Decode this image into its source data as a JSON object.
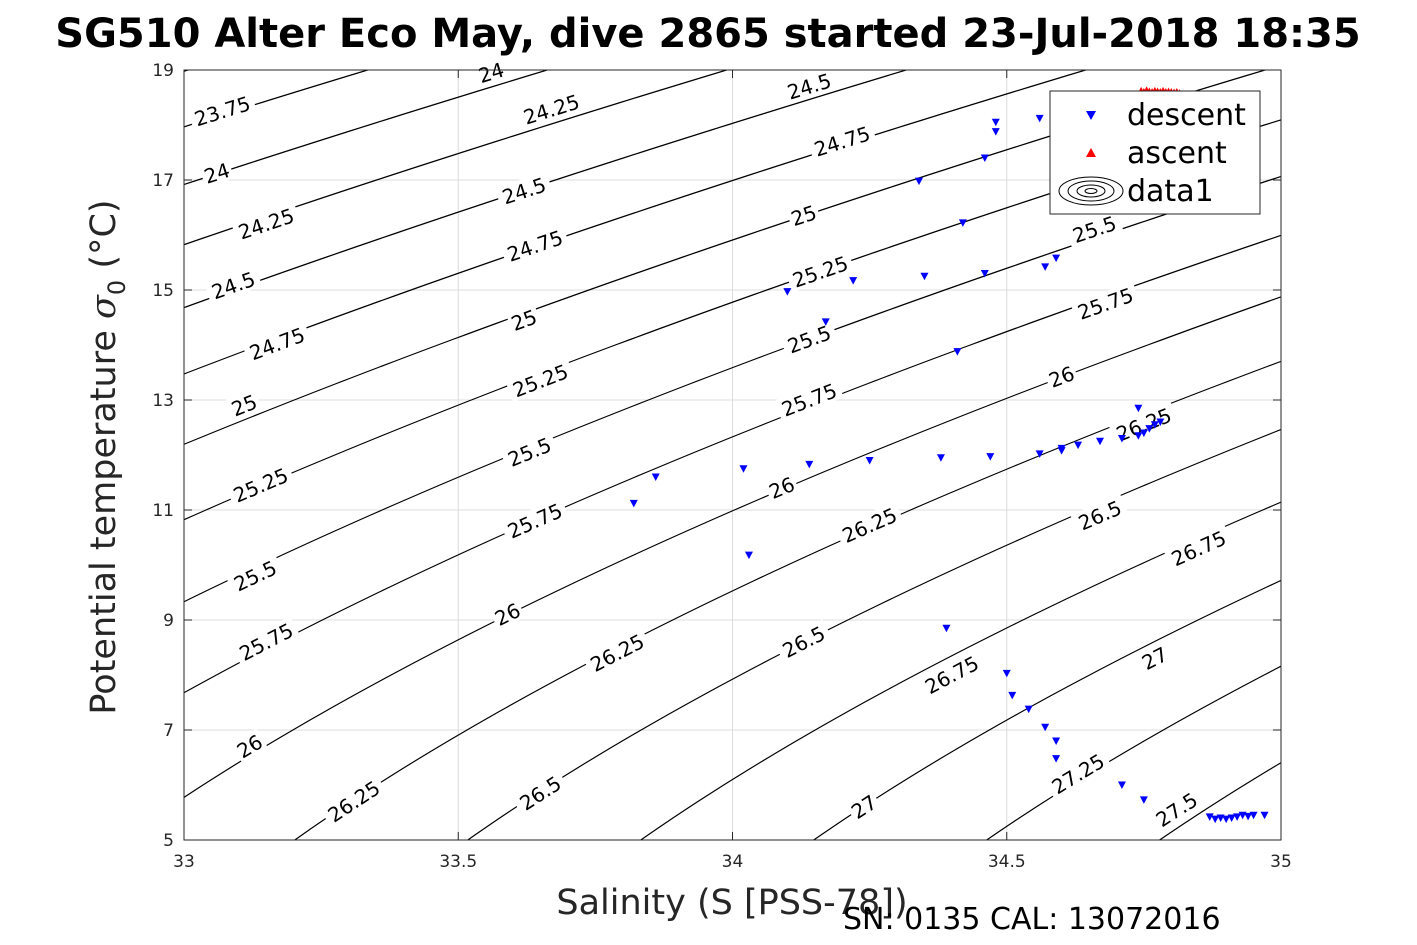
{
  "chart_data": {
    "type": "scatter",
    "title": "SG510 Alter Eco May, dive 2865 started 23-Jul-2018 18:35",
    "xlabel": "Salinity (S [PSS-78])",
    "ylabel_main": "Potential temperature ",
    "ylabel_symbol": "σ",
    "ylabel_sub": "0",
    "ylabel_unit": " (°C)",
    "xlim": [
      33,
      35
    ],
    "ylim": [
      5,
      19
    ],
    "xticks": [
      33,
      33.5,
      34,
      34.5,
      35
    ],
    "xtick_labels": [
      "33",
      "33.5",
      "34",
      "34.5",
      "35"
    ],
    "yticks": [
      5,
      7,
      9,
      11,
      13,
      15,
      17,
      19
    ],
    "ytick_labels": [
      "5",
      "7",
      "9",
      "11",
      "13",
      "15",
      "17",
      "19"
    ],
    "grid": true,
    "legend_placement": "top-right",
    "footer": "SN: 0135  CAL: 13072016",
    "series": [
      {
        "name": "descent",
        "marker": "triangle-down",
        "color": "#0000ff",
        "points": [
          [
            33.82,
            11.12
          ],
          [
            33.86,
            11.6
          ],
          [
            34.02,
            11.75
          ],
          [
            34.03,
            10.18
          ],
          [
            34.1,
            14.97
          ],
          [
            34.14,
            11.83
          ],
          [
            34.17,
            14.42
          ],
          [
            34.22,
            15.17
          ],
          [
            34.25,
            11.9
          ],
          [
            34.34,
            16.98
          ],
          [
            34.35,
            15.25
          ],
          [
            34.38,
            11.95
          ],
          [
            34.39,
            8.85
          ],
          [
            34.41,
            13.88
          ],
          [
            34.42,
            16.22
          ],
          [
            34.46,
            17.4
          ],
          [
            34.46,
            15.3
          ],
          [
            34.47,
            11.97
          ],
          [
            34.48,
            18.05
          ],
          [
            34.48,
            17.88
          ],
          [
            34.5,
            8.03
          ],
          [
            34.51,
            7.63
          ],
          [
            34.54,
            7.38
          ],
          [
            34.56,
            18.12
          ],
          [
            34.56,
            12.02
          ],
          [
            34.57,
            15.42
          ],
          [
            34.57,
            7.05
          ],
          [
            34.59,
            15.58
          ],
          [
            34.59,
            6.8
          ],
          [
            34.59,
            6.48
          ],
          [
            34.6,
            12.08
          ],
          [
            34.6,
            12.12
          ],
          [
            34.63,
            12.18
          ],
          [
            34.67,
            12.25
          ],
          [
            34.71,
            12.3
          ],
          [
            34.71,
            6.0
          ],
          [
            34.74,
            12.85
          ],
          [
            34.74,
            12.35
          ],
          [
            34.75,
            5.73
          ],
          [
            34.75,
            12.4
          ],
          [
            34.76,
            12.48
          ],
          [
            34.77,
            12.55
          ],
          [
            34.78,
            12.6
          ],
          [
            34.87,
            5.42
          ],
          [
            34.88,
            5.38
          ],
          [
            34.89,
            5.4
          ],
          [
            34.9,
            5.38
          ],
          [
            34.91,
            5.4
          ],
          [
            34.92,
            5.42
          ],
          [
            34.93,
            5.45
          ],
          [
            34.94,
            5.43
          ],
          [
            34.95,
            5.45
          ],
          [
            34.97,
            5.45
          ]
        ]
      },
      {
        "name": "ascent",
        "marker": "triangle-up",
        "color": "#ff0000",
        "points": [
          [
            34.745,
            18.62
          ],
          [
            34.75,
            18.6
          ],
          [
            34.755,
            18.63
          ],
          [
            34.76,
            18.61
          ],
          [
            34.765,
            18.6
          ],
          [
            34.77,
            18.62
          ],
          [
            34.775,
            18.61
          ],
          [
            34.78,
            18.6
          ],
          [
            34.785,
            18.62
          ],
          [
            34.79,
            18.6
          ],
          [
            34.795,
            18.61
          ],
          [
            34.8,
            18.6
          ],
          [
            34.805,
            18.59
          ],
          [
            34.81,
            18.6
          ],
          [
            34.815,
            18.58
          ]
        ]
      },
      {
        "name": "data1",
        "marker": "contour",
        "color": "#000000",
        "levels": [
          23.75,
          24,
          24.25,
          24.5,
          24.75,
          25,
          25.25,
          25.5,
          25.75,
          26,
          26.25,
          26.5,
          26.75,
          27,
          27.25,
          27.5
        ]
      }
    ],
    "contour_labels": [
      {
        "text": "23.75",
        "s": 33.07,
        "t": 18.25
      },
      {
        "text": "24",
        "s": 33.56,
        "t": 18.95
      },
      {
        "text": "24",
        "s": 33.06,
        "t": 17.12
      },
      {
        "text": "24.25",
        "s": 33.67,
        "t": 18.28
      },
      {
        "text": "24.25",
        "s": 33.15,
        "t": 16.2
      },
      {
        "text": "24.5",
        "s": 34.14,
        "t": 18.7
      },
      {
        "text": "24.5",
        "s": 33.62,
        "t": 16.8
      },
      {
        "text": "24.5",
        "s": 33.09,
        "t": 15.08
      },
      {
        "text": "24.75",
        "s": 34.2,
        "t": 17.7
      },
      {
        "text": "24.75",
        "s": 33.64,
        "t": 15.8
      },
      {
        "text": "24.75",
        "s": 33.17,
        "t": 14.02
      },
      {
        "text": "25",
        "s": 34.13,
        "t": 16.35
      },
      {
        "text": "25",
        "s": 33.62,
        "t": 14.45
      },
      {
        "text": "25",
        "s": 33.11,
        "t": 12.9
      },
      {
        "text": "25.25",
        "s": 34.16,
        "t": 15.33
      },
      {
        "text": "25.25",
        "s": 33.65,
        "t": 13.35
      },
      {
        "text": "25.25",
        "s": 33.14,
        "t": 11.45
      },
      {
        "text": "25.5",
        "s": 34.66,
        "t": 16.1
      },
      {
        "text": "25.5",
        "s": 34.14,
        "t": 14.1
      },
      {
        "text": "25.5",
        "s": 33.63,
        "t": 12.05
      },
      {
        "text": "25.5",
        "s": 33.13,
        "t": 9.8
      },
      {
        "text": "25.75",
        "s": 34.68,
        "t": 14.75
      },
      {
        "text": "25.75",
        "s": 34.14,
        "t": 13.0
      },
      {
        "text": "25.75",
        "s": 33.64,
        "t": 10.8
      },
      {
        "text": "25.75",
        "s": 33.15,
        "t": 8.6
      },
      {
        "text": "26",
        "s": 34.6,
        "t": 13.42
      },
      {
        "text": "26",
        "s": 34.09,
        "t": 11.4
      },
      {
        "text": "26",
        "s": 33.59,
        "t": 9.1
      },
      {
        "text": "26",
        "s": 33.12,
        "t": 6.7
      },
      {
        "text": "26.25",
        "s": 34.75,
        "t": 12.55
      },
      {
        "text": "26.25",
        "s": 34.25,
        "t": 10.72
      },
      {
        "text": "26.25",
        "s": 33.79,
        "t": 8.4
      },
      {
        "text": "26.25",
        "s": 33.31,
        "t": 5.7
      },
      {
        "text": "26.5",
        "s": 34.67,
        "t": 10.9
      },
      {
        "text": "26.5",
        "s": 34.13,
        "t": 8.6
      },
      {
        "text": "26.5",
        "s": 33.65,
        "t": 5.85
      },
      {
        "text": "26.75",
        "s": 34.85,
        "t": 10.3
      },
      {
        "text": "26.75",
        "s": 34.4,
        "t": 8.0
      },
      {
        "text": "27",
        "s": 34.77,
        "t": 8.3
      },
      {
        "text": "27",
        "s": 34.24,
        "t": 5.6
      },
      {
        "text": "27.25",
        "s": 34.63,
        "t": 6.2
      },
      {
        "text": "27.5",
        "s": 34.81,
        "t": 5.55
      }
    ],
    "legend": {
      "entries": [
        "descent",
        "ascent",
        "data1"
      ]
    }
  }
}
